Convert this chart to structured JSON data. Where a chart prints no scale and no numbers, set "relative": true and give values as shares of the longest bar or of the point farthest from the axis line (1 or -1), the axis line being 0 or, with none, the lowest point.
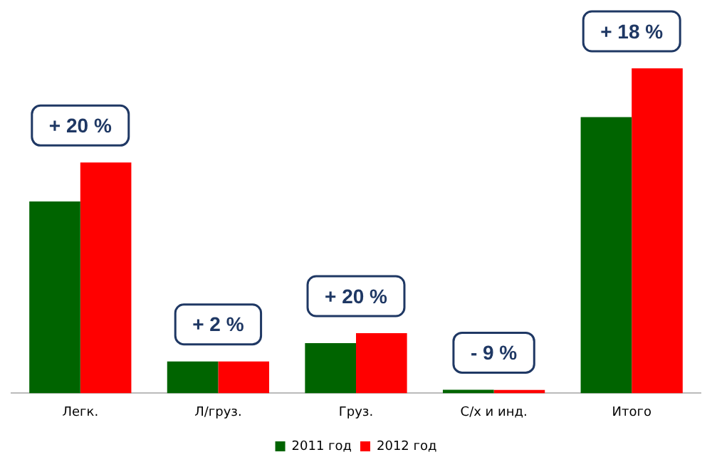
{
  "chart_data": {
    "type": "bar",
    "relative": true,
    "categories": [
      "Легк.",
      "Л/груз.",
      "Груз.",
      "С/х и инд.",
      "Итого"
    ],
    "series": [
      {
        "name": "2011 год",
        "color": "#006400",
        "values": [
          0.59,
          0.098,
          0.154,
          0.011,
          0.85
        ]
      },
      {
        "name": "2012 год",
        "color": "#ff0000",
        "values": [
          0.71,
          0.098,
          0.185,
          0.01,
          1
        ]
      }
    ],
    "annotations": [
      "+ 20 %",
      "+ 2 %",
      "+ 20 %",
      "- 9 %",
      "+ 18 %"
    ],
    "legend": "bottom",
    "grid": false
  }
}
